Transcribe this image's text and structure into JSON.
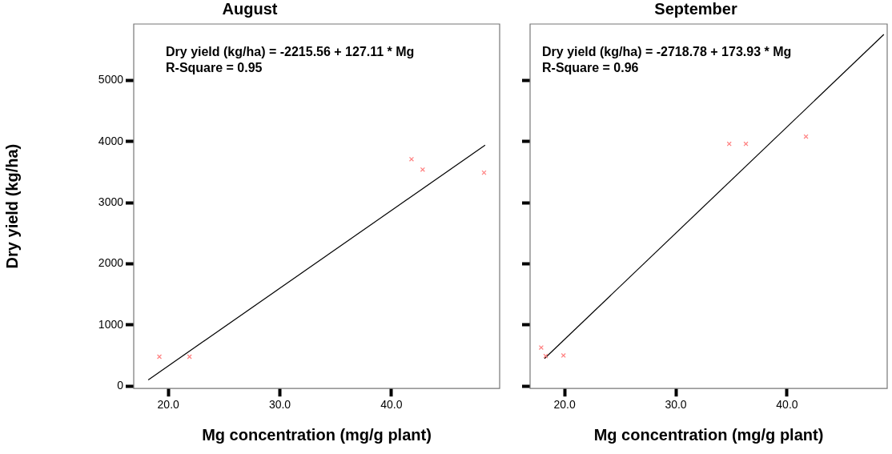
{
  "chart_data": [
    {
      "type": "scatter",
      "title": "August",
      "xlabel": "Mg concentration (mg/g plant)",
      "ylabel": "Dry yield (kg/ha)",
      "annotations": [
        "Dry yield (kg/ha) = -2215.56 + 127.11 * Mg",
        "R-Square = 0.95"
      ],
      "xlim": [
        16.9,
        49.7
      ],
      "xticks": [
        {
          "value": 20,
          "label": "20.0"
        },
        {
          "value": 30,
          "label": "30.0"
        },
        {
          "value": 40,
          "label": "40.0"
        }
      ],
      "ylim": [
        -40,
        5920
      ],
      "yticks": [
        0,
        1000,
        2000,
        3000,
        4000,
        5000
      ],
      "grid": false,
      "legend": false,
      "marker": "cross",
      "series": [
        {
          "type": "scatter",
          "color": "#ff8080",
          "x": [
            19.2,
            21.8,
            21.9,
            41.8,
            42.8,
            48.3
          ],
          "values": [
            480,
            null,
            480,
            3710,
            3540,
            3490
          ]
        },
        {
          "type": "line",
          "color": "#000000",
          "line_style": "solid",
          "marker": "none",
          "x": [
            18.2,
            48.4
          ],
          "values": [
            100,
            3940
          ]
        }
      ]
    },
    {
      "type": "scatter",
      "title": "September",
      "xlabel": "Mg concentration (mg/g plant)",
      "annotations": [
        "Dry yield (kg/ha) = -2718.78 + 173.93 * Mg",
        "R-Square = 0.96"
      ],
      "xlim": [
        16.9,
        49.0
      ],
      "xticks": [
        {
          "value": 20,
          "label": "20.0"
        },
        {
          "value": 30,
          "label": "30.0"
        },
        {
          "value": 40,
          "label": "40.0"
        }
      ],
      "ylim": [
        -40,
        5920
      ],
      "yticks": [
        0,
        1000,
        2000,
        3000,
        4000,
        5000
      ],
      "tick_labels": "x",
      "grid": false,
      "legend": false,
      "marker": "cross",
      "series": [
        {
          "type": "scatter",
          "color": "#ff8080",
          "x": [
            17.9,
            18.3,
            19.9,
            34.8,
            36.3,
            41.7
          ],
          "values": [
            630,
            490,
            500,
            3960,
            3960,
            4080
          ]
        },
        {
          "type": "line",
          "color": "#000000",
          "line_style": "solid",
          "marker": "none",
          "x": [
            18.2,
            48.7
          ],
          "values": [
            450,
            5750
          ]
        }
      ]
    }
  ]
}
